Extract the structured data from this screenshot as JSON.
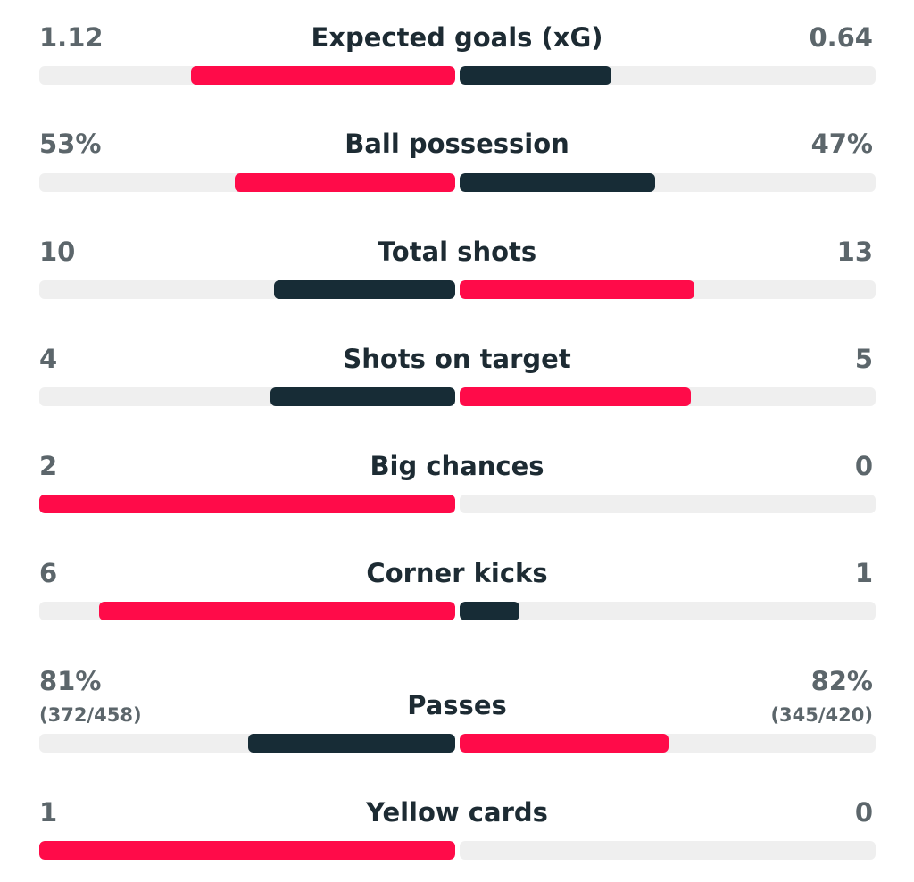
{
  "colors": {
    "highlight": "#ff0b49",
    "lowlight": "#172c36",
    "track": "#efefef",
    "value_text": "#5c666b",
    "label_text": "#1d2b33"
  },
  "stats": [
    {
      "label": "Expected goals (xG)",
      "home": "1.12",
      "away": "0.64",
      "home_share": 0.636,
      "away_share": 0.364,
      "home_color": "highlight",
      "away_color": "lowlight"
    },
    {
      "label": "Ball possession",
      "home": "53%",
      "away": "47%",
      "home_share": 0.53,
      "away_share": 0.47,
      "home_color": "highlight",
      "away_color": "lowlight"
    },
    {
      "label": "Total shots",
      "home": "10",
      "away": "13",
      "home_share": 0.435,
      "away_share": 0.565,
      "home_color": "lowlight",
      "away_color": "highlight"
    },
    {
      "label": "Shots on target",
      "home": "4",
      "away": "5",
      "home_share": 0.444,
      "away_share": 0.556,
      "home_color": "lowlight",
      "away_color": "highlight"
    },
    {
      "label": "Big chances",
      "home": "2",
      "away": "0",
      "home_share": 1.0,
      "away_share": 0.0,
      "home_color": "highlight",
      "away_color": "lowlight"
    },
    {
      "label": "Corner kicks",
      "home": "6",
      "away": "1",
      "home_share": 0.857,
      "away_share": 0.143,
      "home_color": "highlight",
      "away_color": "lowlight"
    },
    {
      "label": "Passes",
      "home": "81%",
      "away": "82%",
      "home_sub": "(372/458)",
      "away_sub": "(345/420)",
      "home_share": 0.497,
      "away_share": 0.503,
      "home_color": "lowlight",
      "away_color": "highlight"
    },
    {
      "label": "Yellow cards",
      "home": "1",
      "away": "0",
      "home_share": 1.0,
      "away_share": 0.0,
      "home_color": "highlight",
      "away_color": "lowlight"
    }
  ]
}
